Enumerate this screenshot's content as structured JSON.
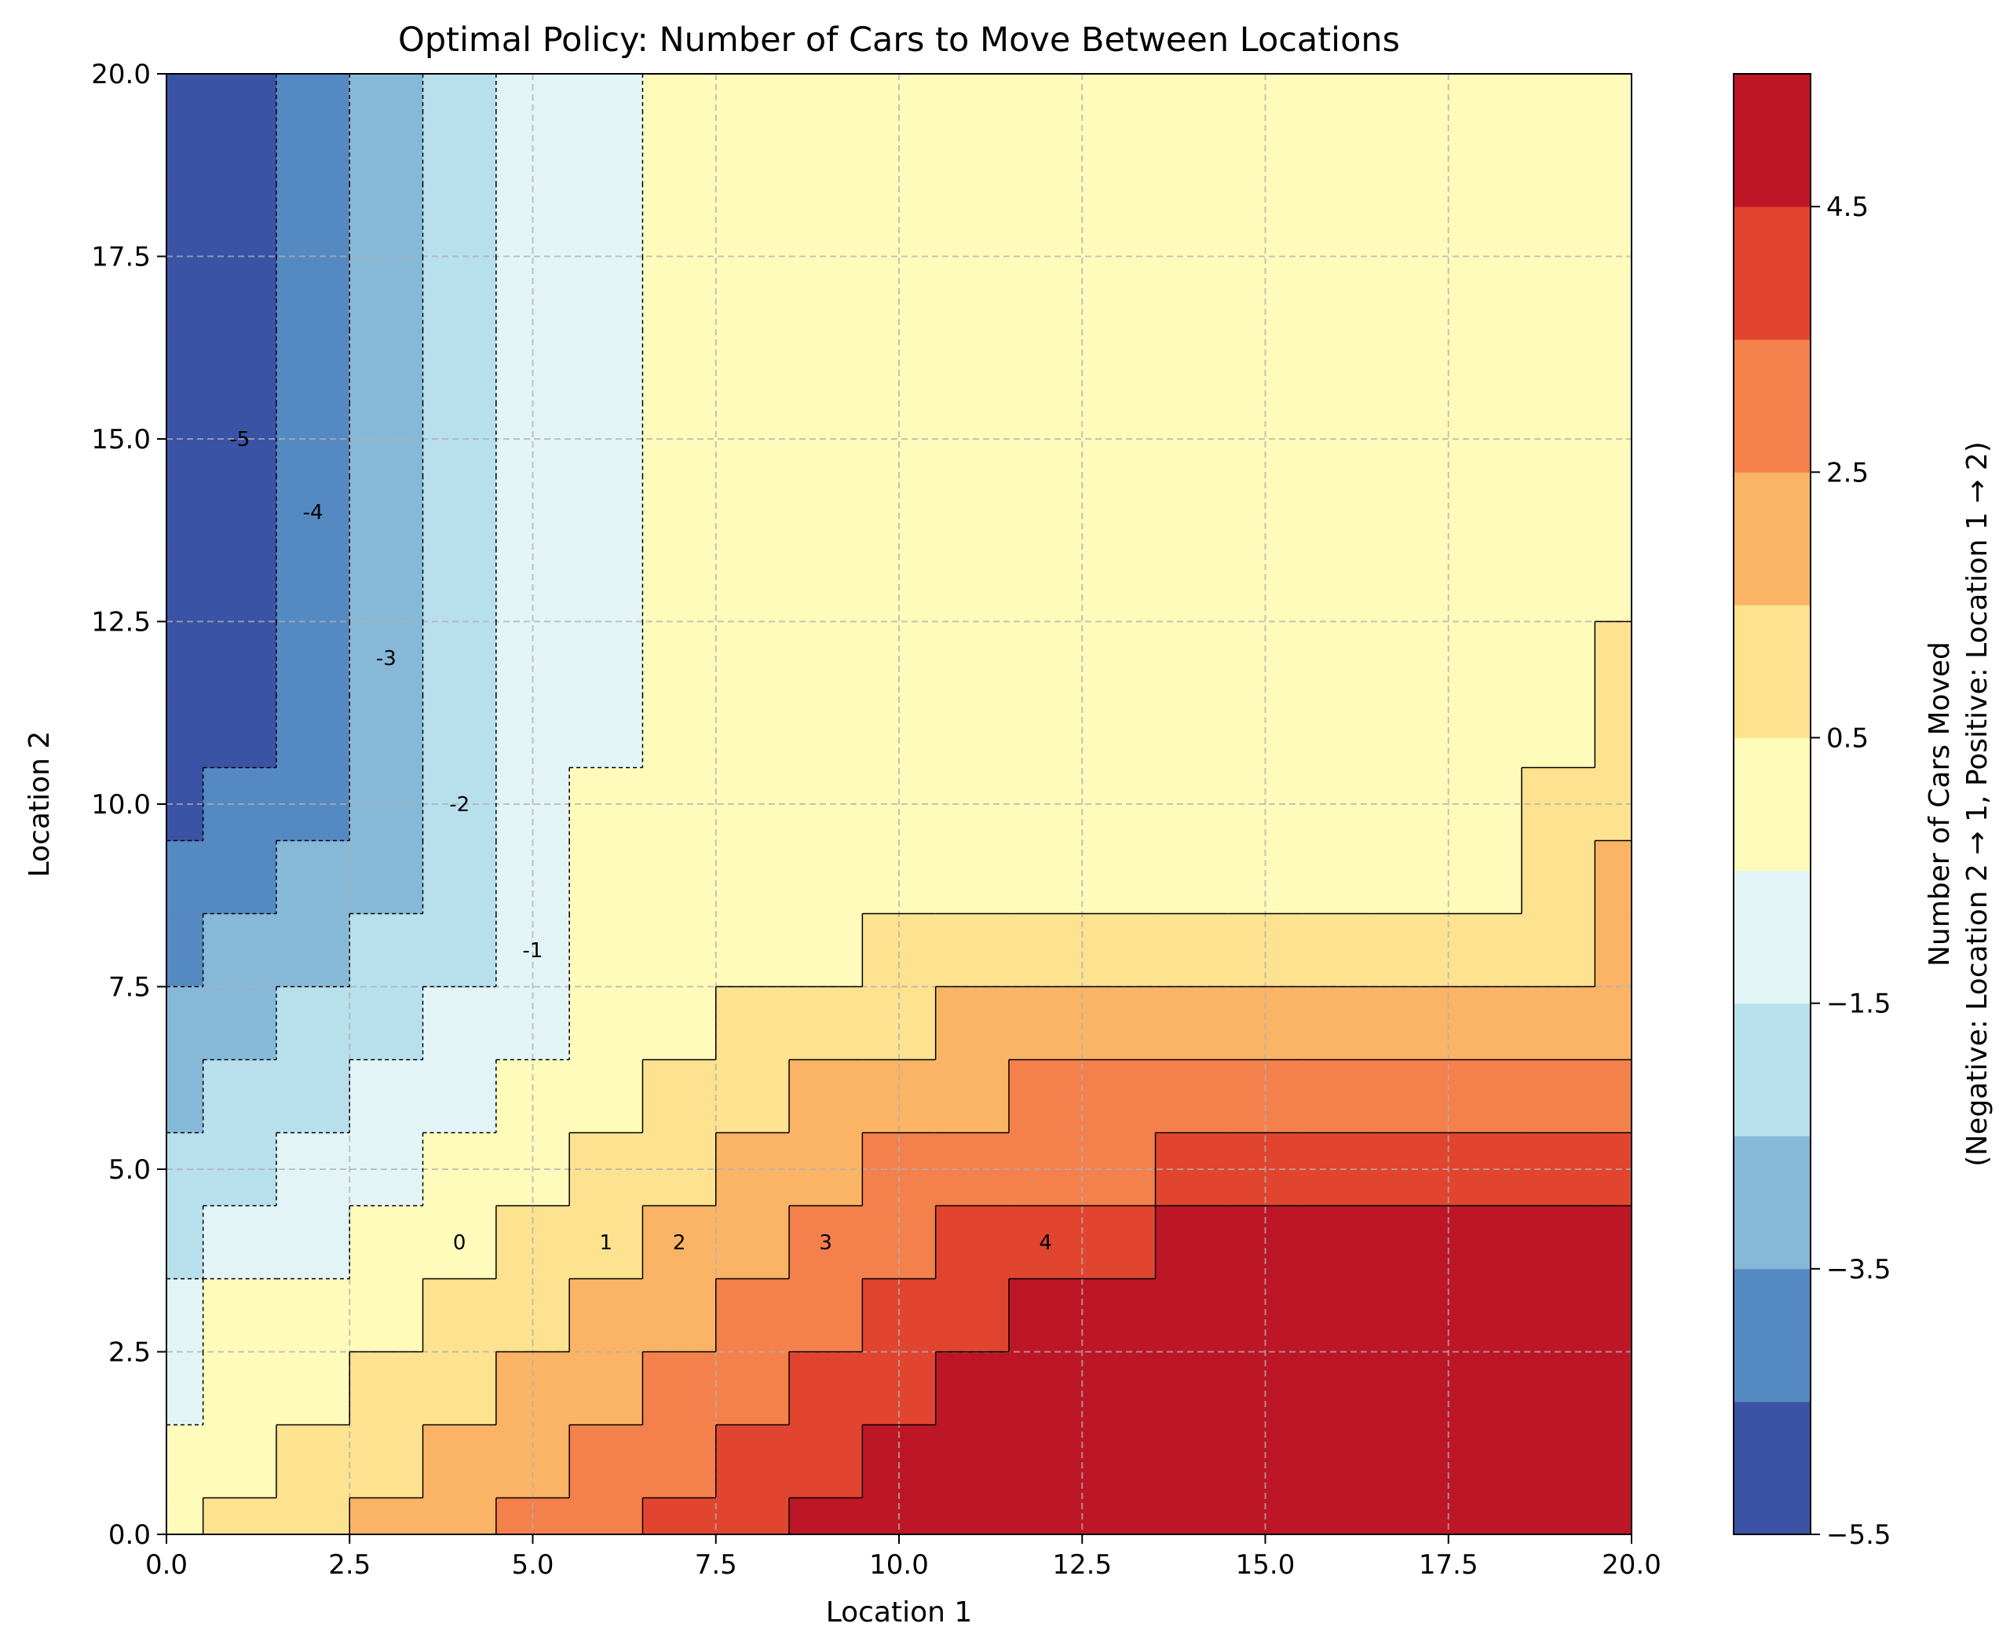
{
  "chart_data": {
    "type": "heatmap",
    "subtype": "filled-contour",
    "title": "Optimal Policy: Number of Cars to Move Between Locations",
    "xlabel": "Location 1",
    "ylabel": "Location 2",
    "xlim": [
      0,
      20
    ],
    "ylim": [
      0,
      20
    ],
    "x_ticks": [
      "0.0",
      "2.5",
      "5.0",
      "7.5",
      "10.0",
      "12.5",
      "15.0",
      "17.5",
      "20.0"
    ],
    "y_ticks": [
      "0.0",
      "2.5",
      "5.0",
      "7.5",
      "10.0",
      "12.5",
      "15.0",
      "17.5",
      "20.0"
    ],
    "grid": true,
    "colormap": "RdYlBu_r",
    "colorbar": {
      "label_line1": "Number of Cars Moved",
      "label_line2": "(Negative: Location 2 → 1, Positive: Location 1 → 2)",
      "range": [
        -5.5,
        5.5
      ],
      "ticks": [
        "−5.5",
        "−3.5",
        "−1.5",
        "0.5",
        "2.5",
        "4.5"
      ],
      "levels": [
        -5.5,
        -4.5,
        -3.5,
        -2.5,
        -1.5,
        -0.5,
        0.5,
        1.5,
        2.5,
        3.5,
        4.5,
        5.5
      ],
      "colors": [
        "#3a53a4",
        "#5589c1",
        "#86b9d8",
        "#b8dfec",
        "#e3f4f7",
        "#fffcbb",
        "#fde28f",
        "#fbb465",
        "#f4804c",
        "#e14530",
        "#bd1727"
      ]
    },
    "boundary_color": "#000000",
    "policy_grid_note": "rows are Location 2 = 0..20, columns are Location 1 = 0..20",
    "policy_values": [
      [
        0,
        1,
        1,
        2,
        2,
        3,
        3,
        4,
        4,
        5,
        5,
        5,
        5,
        5,
        5,
        5,
        5,
        5,
        5,
        5,
        5
      ],
      [
        0,
        0,
        1,
        1,
        2,
        2,
        3,
        3,
        4,
        4,
        5,
        5,
        5,
        5,
        5,
        5,
        5,
        5,
        5,
        5,
        5
      ],
      [
        -1,
        0,
        0,
        1,
        1,
        2,
        2,
        3,
        3,
        4,
        4,
        5,
        5,
        5,
        5,
        5,
        5,
        5,
        5,
        5,
        5
      ],
      [
        -1,
        0,
        0,
        0,
        1,
        1,
        2,
        2,
        3,
        3,
        4,
        4,
        5,
        5,
        5,
        5,
        5,
        5,
        5,
        5,
        5
      ],
      [
        -2,
        -1,
        -1,
        0,
        0,
        1,
        1,
        2,
        2,
        3,
        3,
        4,
        4,
        4,
        5,
        5,
        5,
        5,
        5,
        5,
        5
      ],
      [
        -2,
        -2,
        -1,
        -1,
        0,
        0,
        1,
        1,
        2,
        2,
        3,
        3,
        3,
        3,
        4,
        4,
        4,
        4,
        4,
        4,
        4
      ],
      [
        -3,
        -2,
        -2,
        -1,
        -1,
        0,
        0,
        1,
        1,
        2,
        2,
        2,
        3,
        3,
        3,
        3,
        3,
        3,
        3,
        3,
        3
      ],
      [
        -3,
        -3,
        -2,
        -2,
        -1,
        -1,
        0,
        0,
        1,
        1,
        1,
        2,
        2,
        2,
        2,
        2,
        2,
        2,
        2,
        2,
        2
      ],
      [
        -4,
        -3,
        -3,
        -2,
        -2,
        -1,
        0,
        0,
        0,
        0,
        1,
        1,
        1,
        1,
        1,
        1,
        1,
        1,
        1,
        1,
        2
      ],
      [
        -4,
        -4,
        -3,
        -3,
        -2,
        -1,
        0,
        0,
        0,
        0,
        0,
        0,
        0,
        0,
        0,
        0,
        0,
        0,
        0,
        1,
        2
      ],
      [
        -5,
        -4,
        -4,
        -3,
        -2,
        -1,
        0,
        0,
        0,
        0,
        0,
        0,
        0,
        0,
        0,
        0,
        0,
        0,
        0,
        1,
        1
      ],
      [
        -5,
        -5,
        -4,
        -3,
        -2,
        -1,
        -1,
        0,
        0,
        0,
        0,
        0,
        0,
        0,
        0,
        0,
        0,
        0,
        0,
        0,
        1
      ],
      [
        -5,
        -5,
        -4,
        -3,
        -2,
        -1,
        -1,
        0,
        0,
        0,
        0,
        0,
        0,
        0,
        0,
        0,
        0,
        0,
        0,
        0,
        1
      ],
      [
        -5,
        -5,
        -4,
        -3,
        -2,
        -1,
        -1,
        0,
        0,
        0,
        0,
        0,
        0,
        0,
        0,
        0,
        0,
        0,
        0,
        0,
        0
      ],
      [
        -5,
        -5,
        -4,
        -3,
        -2,
        -1,
        -1,
        0,
        0,
        0,
        0,
        0,
        0,
        0,
        0,
        0,
        0,
        0,
        0,
        0,
        0
      ],
      [
        -5,
        -5,
        -4,
        -3,
        -2,
        -1,
        -1,
        0,
        0,
        0,
        0,
        0,
        0,
        0,
        0,
        0,
        0,
        0,
        0,
        0,
        0
      ],
      [
        -5,
        -5,
        -4,
        -3,
        -2,
        -1,
        -1,
        0,
        0,
        0,
        0,
        0,
        0,
        0,
        0,
        0,
        0,
        0,
        0,
        0,
        0
      ],
      [
        -5,
        -5,
        -4,
        -3,
        -2,
        -1,
        -1,
        0,
        0,
        0,
        0,
        0,
        0,
        0,
        0,
        0,
        0,
        0,
        0,
        0,
        0
      ],
      [
        -5,
        -5,
        -4,
        -3,
        -2,
        -1,
        -1,
        0,
        0,
        0,
        0,
        0,
        0,
        0,
        0,
        0,
        0,
        0,
        0,
        0,
        0
      ],
      [
        -5,
        -5,
        -4,
        -3,
        -2,
        -1,
        -1,
        0,
        0,
        0,
        0,
        0,
        0,
        0,
        0,
        0,
        0,
        0,
        0,
        0,
        0
      ],
      [
        -5,
        -5,
        -4,
        -3,
        -2,
        -1,
        -1,
        0,
        0,
        0,
        0,
        0,
        0,
        0,
        0,
        0,
        0,
        0,
        0,
        0,
        0
      ]
    ],
    "contour_labels": [
      {
        "text": "-5",
        "x": 1.0,
        "y": 15.0
      },
      {
        "text": "-4",
        "x": 2.0,
        "y": 14.0
      },
      {
        "text": "-3",
        "x": 3.0,
        "y": 12.0
      },
      {
        "text": "-2",
        "x": 4.0,
        "y": 10.0
      },
      {
        "text": "-1",
        "x": 5.0,
        "y": 8.0
      },
      {
        "text": "0",
        "x": 4.0,
        "y": 4.0
      },
      {
        "text": "1",
        "x": 6.0,
        "y": 4.0
      },
      {
        "text": "2",
        "x": 7.0,
        "y": 4.0
      },
      {
        "text": "3",
        "x": 9.0,
        "y": 4.0
      },
      {
        "text": "4",
        "x": 12.0,
        "y": 4.0
      }
    ]
  }
}
